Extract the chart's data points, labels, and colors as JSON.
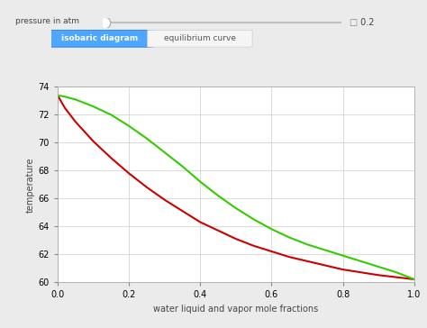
{
  "xlabel": "water liquid and vapor mole fractions",
  "ylabel": "temperature",
  "xlim": [
    0.0,
    1.0
  ],
  "ylim": [
    60.0,
    74.0
  ],
  "xticks": [
    0.0,
    0.2,
    0.4,
    0.6,
    0.8,
    1.0
  ],
  "yticks": [
    60,
    62,
    64,
    66,
    68,
    70,
    72,
    74
  ],
  "plot_bg_color": "#ffffff",
  "outer_bg_color": "#ebebeb",
  "liquid_color": "#cc0000",
  "vapor_color": "#33cc00",
  "linewidth": 1.5,
  "slider_label": "pressure in atm",
  "slider_value": " 0.2",
  "btn1_label": "isobaric diagram",
  "btn2_label": "equilibrium curve",
  "liquid_x": [
    0.0,
    0.02,
    0.05,
    0.1,
    0.15,
    0.2,
    0.25,
    0.3,
    0.35,
    0.4,
    0.45,
    0.5,
    0.55,
    0.6,
    0.65,
    0.7,
    0.75,
    0.8,
    0.85,
    0.9,
    0.95,
    1.0
  ],
  "liquid_y": [
    73.4,
    72.5,
    71.5,
    70.1,
    68.9,
    67.8,
    66.8,
    65.9,
    65.1,
    64.3,
    63.7,
    63.1,
    62.6,
    62.2,
    61.8,
    61.5,
    61.2,
    60.9,
    60.7,
    60.5,
    60.35,
    60.2
  ],
  "vapor_x": [
    0.0,
    0.02,
    0.05,
    0.1,
    0.15,
    0.2,
    0.25,
    0.3,
    0.35,
    0.4,
    0.45,
    0.5,
    0.55,
    0.6,
    0.65,
    0.7,
    0.75,
    0.8,
    0.85,
    0.9,
    0.95,
    1.0
  ],
  "vapor_y": [
    73.4,
    73.3,
    73.1,
    72.6,
    72.0,
    71.2,
    70.3,
    69.3,
    68.3,
    67.2,
    66.2,
    65.3,
    64.5,
    63.8,
    63.2,
    62.7,
    62.3,
    61.9,
    61.5,
    61.1,
    60.7,
    60.2
  ]
}
